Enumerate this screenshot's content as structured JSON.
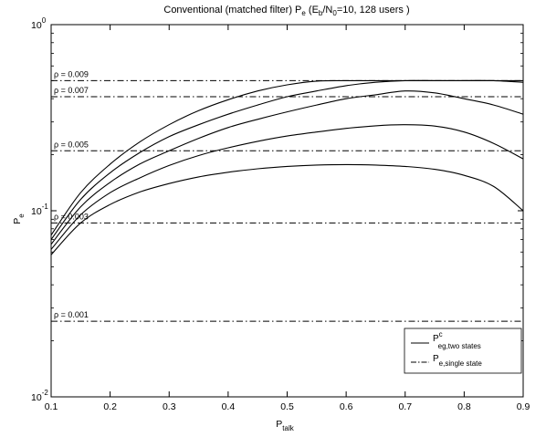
{
  "chart_data": {
    "type": "line",
    "title": {
      "main": "Conventional (matched filter) P",
      "sub_e": "e",
      "mid": " (E",
      "sub_b": "b",
      "slash": "/N",
      "sub_0": "0",
      "tail": "=10, 128 users )"
    },
    "xlabel": {
      "main": "P",
      "sub": "talk"
    },
    "ylabel": {
      "main": "P",
      "sub": "e"
    },
    "xlim": [
      0.1,
      0.9
    ],
    "ylim": [
      0.01,
      1
    ],
    "yscale": "log",
    "grid": false,
    "xticks": [
      "0.1",
      "0.2",
      "0.3",
      "0.4",
      "0.5",
      "0.6",
      "0.7",
      "0.8",
      "0.9"
    ],
    "yticks": [
      {
        "base": "10",
        "exp": "0"
      },
      {
        "base": "10",
        "exp": "-1"
      },
      {
        "base": "10",
        "exp": "-2"
      }
    ],
    "legend": {
      "placement": "bottom-right",
      "items": [
        {
          "style": "solid",
          "main": "P",
          "sup": "c",
          "sub": "eg,two states"
        },
        {
          "style": "dashdot",
          "main": "P",
          "sup": "",
          "sub": "e,single state"
        }
      ]
    },
    "single_state": [
      {
        "label": "ρ = 0.009",
        "value": 0.5
      },
      {
        "label": "ρ = 0.007",
        "value": 0.41
      },
      {
        "label": "ρ = 0.005",
        "value": 0.21
      },
      {
        "label": "ρ = 0.003",
        "value": 0.086
      },
      {
        "label": "ρ = 0.001",
        "value": 0.0255
      }
    ],
    "two_state": [
      {
        "x": [
          0.1,
          0.15,
          0.2,
          0.25,
          0.3,
          0.35,
          0.4,
          0.45,
          0.5,
          0.55,
          0.6,
          0.65,
          0.7,
          0.75,
          0.8,
          0.85,
          0.9
        ],
        "y": [
          0.074,
          0.125,
          0.178,
          0.234,
          0.29,
          0.345,
          0.395,
          0.44,
          0.475,
          0.497,
          0.5,
          0.5,
          0.5,
          0.5,
          0.5,
          0.5,
          0.5
        ]
      },
      {
        "x": [
          0.1,
          0.15,
          0.2,
          0.25,
          0.3,
          0.35,
          0.4,
          0.45,
          0.5,
          0.55,
          0.6,
          0.65,
          0.7,
          0.75,
          0.8,
          0.85,
          0.9
        ],
        "y": [
          0.07,
          0.115,
          0.16,
          0.205,
          0.25,
          0.29,
          0.33,
          0.37,
          0.41,
          0.44,
          0.47,
          0.49,
          0.5,
          0.5,
          0.5,
          0.5,
          0.49
        ]
      },
      {
        "x": [
          0.1,
          0.15,
          0.2,
          0.25,
          0.3,
          0.35,
          0.4,
          0.45,
          0.5,
          0.55,
          0.6,
          0.65,
          0.7,
          0.75,
          0.8,
          0.85,
          0.9
        ],
        "y": [
          0.066,
          0.105,
          0.142,
          0.178,
          0.21,
          0.245,
          0.28,
          0.31,
          0.34,
          0.37,
          0.4,
          0.42,
          0.44,
          0.43,
          0.4,
          0.37,
          0.33
        ]
      },
      {
        "x": [
          0.1,
          0.15,
          0.2,
          0.25,
          0.3,
          0.35,
          0.4,
          0.45,
          0.5,
          0.55,
          0.6,
          0.65,
          0.7,
          0.75,
          0.8,
          0.85,
          0.9
        ],
        "y": [
          0.062,
          0.095,
          0.125,
          0.15,
          0.175,
          0.198,
          0.218,
          0.236,
          0.252,
          0.265,
          0.277,
          0.286,
          0.29,
          0.285,
          0.265,
          0.23,
          0.19
        ]
      },
      {
        "x": [
          0.1,
          0.15,
          0.2,
          0.25,
          0.3,
          0.35,
          0.4,
          0.45,
          0.5,
          0.55,
          0.6,
          0.65,
          0.7,
          0.75,
          0.8,
          0.85,
          0.9
        ],
        "y": [
          0.058,
          0.086,
          0.108,
          0.126,
          0.14,
          0.152,
          0.161,
          0.168,
          0.173,
          0.176,
          0.177,
          0.176,
          0.173,
          0.167,
          0.155,
          0.135,
          0.1
        ]
      }
    ]
  }
}
